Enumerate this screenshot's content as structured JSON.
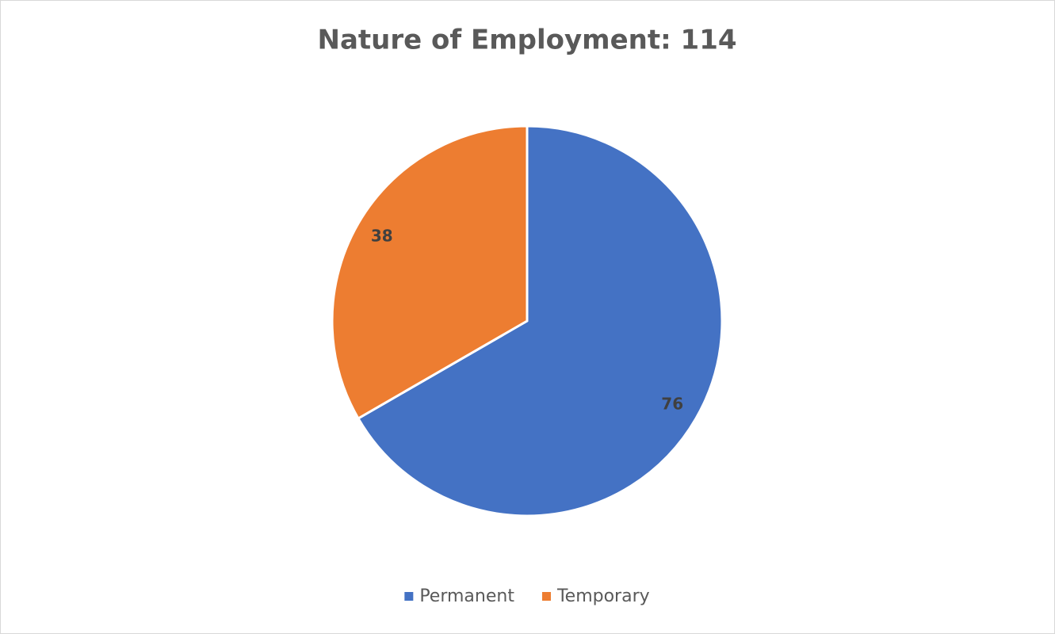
{
  "chart_data": {
    "type": "pie",
    "title": "Nature of Employment: 114",
    "categories": [
      "Permanent",
      "Temporary"
    ],
    "values": [
      76,
      38
    ],
    "colors": [
      "#4472c4",
      "#ed7d31"
    ],
    "legend": "bottom"
  }
}
